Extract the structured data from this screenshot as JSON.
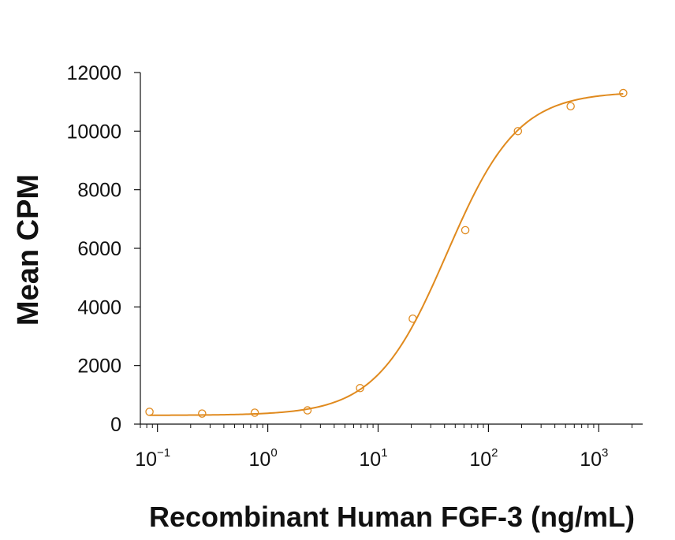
{
  "chart_data": {
    "type": "scatter",
    "title": "",
    "xlabel": "Recombinant Human FGF-3 (ng/mL)",
    "ylabel": "Mean CPM",
    "x_scale": "log",
    "xlim": [
      0.07,
      2500
    ],
    "ylim": [
      0,
      12000
    ],
    "x_ticks": [
      {
        "base": "10",
        "exp": "−1"
      },
      {
        "base": "10",
        "exp": "0"
      },
      {
        "base": "10",
        "exp": "1"
      },
      {
        "base": "10",
        "exp": "2"
      },
      {
        "base": "10",
        "exp": "3"
      }
    ],
    "y_ticks": [
      "0",
      "2000",
      "4000",
      "6000",
      "8000",
      "10000",
      "12000"
    ],
    "grid": false,
    "legend": "none",
    "color": "#e08a1e",
    "series": [
      {
        "x": [
          0.0847,
          0.254,
          0.762,
          2.29,
          6.86,
          20.6,
          61.7,
          185,
          556,
          1667
        ],
        "y": [
          420,
          360,
          390,
          470,
          1230,
          3600,
          6620,
          10000,
          10850,
          11300
        ]
      }
    ],
    "fit_curve": {
      "model": "4PL",
      "bottom": 300,
      "top": 11350,
      "ec50": 42,
      "hill": 1.35
    }
  }
}
